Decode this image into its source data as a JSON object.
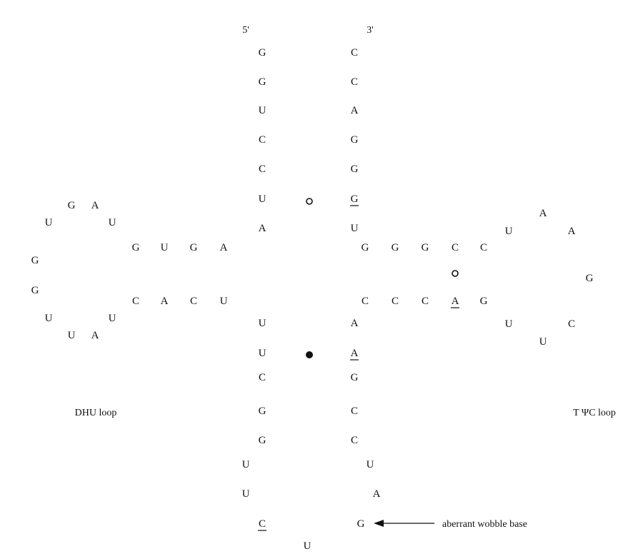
{
  "ends": {
    "five_prime": "5'",
    "three_prime": "3'"
  },
  "acceptor_stem": {
    "strand_5": [
      "G",
      "G",
      "U",
      "C",
      "C",
      "U",
      "A"
    ],
    "strand_3": [
      "C",
      "C",
      "A",
      "G",
      "G",
      "G",
      "U"
    ],
    "underlined_3_index": 5
  },
  "dhu_arm": {
    "stem_top": [
      "G",
      "U",
      "G",
      "A"
    ],
    "stem_bottom": [
      "C",
      "A",
      "C",
      "U"
    ],
    "loop": [
      "G",
      "A",
      "U",
      "U",
      "G",
      "G",
      "U",
      "U",
      "U",
      "A"
    ]
  },
  "anticodon_arm": {
    "strand_5": [
      "U",
      "U",
      "C",
      "G",
      "G",
      "U",
      "U"
    ],
    "strand_3": [
      "A",
      "A",
      "G",
      "C",
      "C",
      "U",
      "A"
    ],
    "underlined_3_index": 1,
    "loop_C": "C",
    "loop_U": "U",
    "loop_G": "G"
  },
  "tpsic_arm": {
    "stem_top": [
      "G",
      "G",
      "G",
      "C",
      "C"
    ],
    "stem_bottom": [
      "C",
      "C",
      "C",
      "A",
      "G"
    ],
    "underlined_bottom_index": 3,
    "loop": [
      "U",
      "A",
      "A",
      "G",
      "C",
      "U",
      "U"
    ]
  },
  "labels": {
    "dhu_loop": "DHU loop",
    "tpsic_loop": "T ΨC loop",
    "aberrant": "aberrant wobble base"
  },
  "pair_marks": {
    "acceptor": "noncanonical-open-circle",
    "tpsic": "noncanonical-open-circle",
    "anticodon": "filled-circle"
  }
}
